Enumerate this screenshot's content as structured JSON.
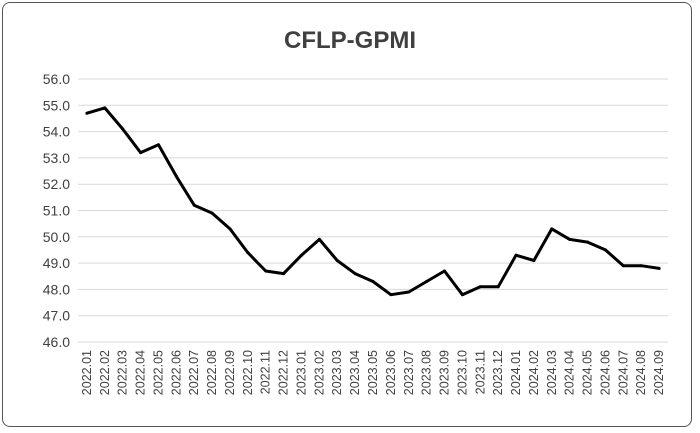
{
  "chart_data": {
    "type": "line",
    "title": "CFLP-GPMI",
    "xlabel": "",
    "ylabel": "",
    "ylim": [
      46.0,
      56.0
    ],
    "yticks": [
      "46.0",
      "47.0",
      "48.0",
      "49.0",
      "50.0",
      "51.0",
      "52.0",
      "53.0",
      "54.0",
      "55.0",
      "56.0"
    ],
    "grid": true,
    "legend": "none",
    "line_color": "#000000",
    "x": [
      "2022.01",
      "2022.02",
      "2022.03",
      "2022.04",
      "2022.05",
      "2022.06",
      "2022.07",
      "2022.08",
      "2022.09",
      "2022.10",
      "2022.11",
      "2022.12",
      "2023.01",
      "2023.02",
      "2023.03",
      "2023.04",
      "2023.05",
      "2023.06",
      "2023.07",
      "2023.08",
      "2023.09",
      "2023.10",
      "2023.11",
      "2023.12",
      "2024.01",
      "2024.02",
      "2024.03",
      "2024.04",
      "2024.05",
      "2024.06",
      "2024.07",
      "2024.08",
      "2024.09"
    ],
    "series": [
      {
        "values": [
          54.7,
          54.9,
          54.1,
          53.2,
          53.5,
          52.3,
          51.2,
          50.9,
          50.3,
          49.4,
          48.7,
          48.6,
          49.3,
          49.9,
          49.1,
          48.6,
          48.3,
          47.8,
          47.9,
          48.3,
          48.7,
          47.8,
          48.1,
          48.1,
          49.3,
          49.1,
          50.3,
          49.9,
          49.8,
          49.5,
          48.9,
          48.9,
          48.8
        ]
      }
    ]
  }
}
